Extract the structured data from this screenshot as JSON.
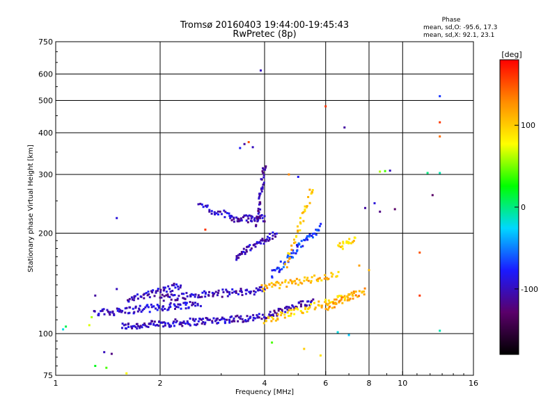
{
  "header": {
    "title_line1": "Tromsø 20160403 19:44:00-19:45:43",
    "title_line2": "RwPretec (8p)",
    "phase_heading": "Phase",
    "phase_line_o": "mean, sd,O: -95.6, 17.3",
    "phase_line_x": "mean, sd,X:  92.1, 23.1"
  },
  "chart_data": {
    "type": "scatter",
    "xlabel": "Frequency [MHz]",
    "ylabel": "Stationary phase Virtual Height [km]",
    "x_scale": "log",
    "y_scale": "log",
    "xlim": [
      1,
      16
    ],
    "ylim": [
      75,
      750
    ],
    "x_ticks": [
      1,
      2,
      4,
      6,
      8,
      10,
      16
    ],
    "x_tick_labels": [
      "1",
      "2",
      "4",
      "6",
      "8",
      "10",
      "16"
    ],
    "x_gridlines": [
      2,
      4,
      6,
      8,
      10
    ],
    "y_ticks": [
      75,
      100,
      200,
      300,
      400,
      500,
      600,
      750
    ],
    "y_tick_labels": [
      "75",
      "100",
      "200",
      "300",
      "400",
      "500",
      "600",
      "750"
    ],
    "y_gridlines": [
      100,
      200,
      300,
      400,
      500,
      600
    ],
    "grid": true,
    "colorbar": {
      "label": "[deg]",
      "range": [
        -180,
        180
      ],
      "tick_values": [
        100,
        0,
        -100
      ],
      "tick_labels": [
        "100",
        "0",
        "-100"
      ],
      "colormap": [
        "#000000",
        "#5a006a",
        "#1a1aff",
        "#00d8ff",
        "#00ff00",
        "#ffff00",
        "#ff8c00",
        "#ff0000"
      ]
    },
    "traces": [
      {
        "name": "",
        "phase": -100,
        "f0": 1.55,
        "f1": 3.9,
        "h0": 105,
        "h1": 112,
        "n": 150
      },
      {
        "name": "",
        "phase": -95,
        "f0": 1.3,
        "f1": 2.6,
        "h0": 115,
        "h1": 123,
        "n": 95
      },
      {
        "name": "",
        "phase": -100,
        "f0": 2.0,
        "f1": 4.0,
        "h0": 128,
        "h1": 135,
        "n": 90
      },
      {
        "name": "",
        "phase": -105,
        "f0": 3.95,
        "f1": 5.5,
        "h0": 112,
        "h1": 125,
        "n": 55
      },
      {
        "name": "",
        "phase": 100,
        "f0": 4.0,
        "f1": 7.2,
        "h0": 110,
        "h1": 130,
        "n": 70
      },
      {
        "name": "",
        "phase": 110,
        "f0": 3.9,
        "f1": 6.5,
        "h0": 137,
        "h1": 150,
        "n": 60
      },
      {
        "name": "",
        "phase": 120,
        "f0": 6.0,
        "f1": 7.8,
        "h0": 120,
        "h1": 135,
        "n": 40
      },
      {
        "name": "",
        "phase": 95,
        "f0": 6.5,
        "f1": 7.3,
        "h0": 180,
        "h1": 195,
        "n": 20
      },
      {
        "name": "",
        "phase": -105,
        "f0": 3.2,
        "f1": 4.0,
        "h0": 220,
        "h1": 222,
        "n": 45
      },
      {
        "name": "",
        "phase": -100,
        "f0": 3.3,
        "f1": 4.3,
        "h0": 170,
        "h1": 200,
        "n": 55
      },
      {
        "name": "",
        "phase": -95,
        "f0": 2.6,
        "f1": 3.2,
        "h0": 240,
        "h1": 225,
        "n": 25
      },
      {
        "name": "",
        "phase": -110,
        "f0": 3.8,
        "f1": 4.0,
        "h0": 210,
        "h1": 320,
        "n": 40
      },
      {
        "name": "",
        "phase": -70,
        "f0": 4.2,
        "f1": 5.8,
        "h0": 150,
        "h1": 210,
        "n": 60
      },
      {
        "name": "",
        "phase": 105,
        "f0": 4.6,
        "f1": 5.5,
        "h0": 160,
        "h1": 270,
        "n": 35
      },
      {
        "name": "",
        "phase": -100,
        "f0": 1.6,
        "f1": 2.3,
        "h0": 125,
        "h1": 140,
        "n": 50
      }
    ],
    "points": [
      {
        "x": 3.9,
        "y": 615,
        "phase": -100
      },
      {
        "x": 6.0,
        "y": 480,
        "phase": 160
      },
      {
        "x": 6.8,
        "y": 415,
        "phase": -110
      },
      {
        "x": 12.8,
        "y": 515,
        "phase": -70
      },
      {
        "x": 12.8,
        "y": 430,
        "phase": 160
      },
      {
        "x": 12.8,
        "y": 390,
        "phase": 140
      },
      {
        "x": 12.8,
        "y": 303,
        "phase": -10
      },
      {
        "x": 12.2,
        "y": 260,
        "phase": -130
      },
      {
        "x": 8.6,
        "y": 306,
        "phase": 60
      },
      {
        "x": 8.9,
        "y": 307,
        "phase": 40
      },
      {
        "x": 9.2,
        "y": 308,
        "phase": -100
      },
      {
        "x": 11.8,
        "y": 303,
        "phase": 0
      },
      {
        "x": 11.2,
        "y": 175,
        "phase": 150
      },
      {
        "x": 11.2,
        "y": 130,
        "phase": 160
      },
      {
        "x": 12.8,
        "y": 102,
        "phase": -10
      },
      {
        "x": 1.5,
        "y": 222,
        "phase": -90
      },
      {
        "x": 1.5,
        "y": 136,
        "phase": -100
      },
      {
        "x": 1.3,
        "y": 130,
        "phase": -110
      },
      {
        "x": 1.05,
        "y": 103,
        "phase": -20
      },
      {
        "x": 1.07,
        "y": 105,
        "phase": 10
      },
      {
        "x": 1.25,
        "y": 106,
        "phase": 70
      },
      {
        "x": 1.27,
        "y": 112,
        "phase": 60
      },
      {
        "x": 1.38,
        "y": 88,
        "phase": -100
      },
      {
        "x": 1.45,
        "y": 87,
        "phase": -120
      },
      {
        "x": 1.3,
        "y": 80,
        "phase": 20
      },
      {
        "x": 1.4,
        "y": 79,
        "phase": 40
      },
      {
        "x": 1.6,
        "y": 76,
        "phase": 80
      },
      {
        "x": 2.7,
        "y": 205,
        "phase": 160
      },
      {
        "x": 5.8,
        "y": 86,
        "phase": 90
      },
      {
        "x": 6.5,
        "y": 101,
        "phase": -20
      },
      {
        "x": 7.0,
        "y": 99,
        "phase": -30
      },
      {
        "x": 7.8,
        "y": 238,
        "phase": -110
      },
      {
        "x": 8.6,
        "y": 232,
        "phase": -120
      },
      {
        "x": 8.3,
        "y": 246,
        "phase": -90
      },
      {
        "x": 9.5,
        "y": 236,
        "phase": -130
      },
      {
        "x": 8.0,
        "y": 155,
        "phase": 110
      },
      {
        "x": 7.5,
        "y": 160,
        "phase": 120
      },
      {
        "x": 3.4,
        "y": 360,
        "phase": -80
      },
      {
        "x": 3.5,
        "y": 370,
        "phase": -110
      },
      {
        "x": 3.6,
        "y": 375,
        "phase": 150
      },
      {
        "x": 3.7,
        "y": 362,
        "phase": -100
      },
      {
        "x": 4.7,
        "y": 300,
        "phase": 130
      },
      {
        "x": 5.0,
        "y": 295,
        "phase": -80
      },
      {
        "x": 5.4,
        "y": 270,
        "phase": 120
      },
      {
        "x": 4.2,
        "y": 94,
        "phase": 40
      },
      {
        "x": 5.2,
        "y": 90,
        "phase": 100
      }
    ]
  }
}
